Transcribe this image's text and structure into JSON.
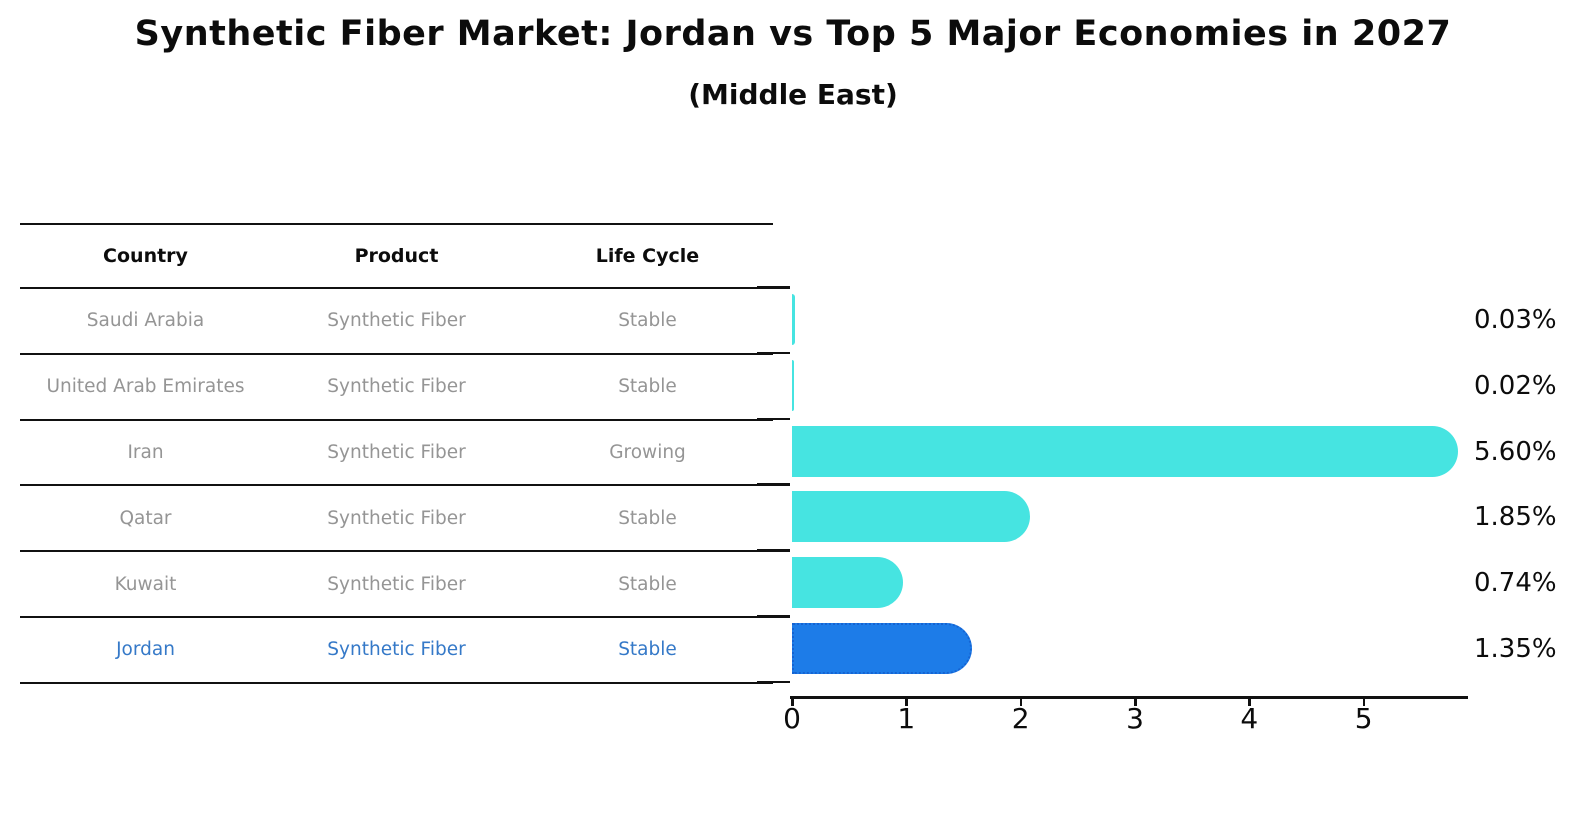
{
  "title": "Synthetic Fiber Market: Jordan vs Top 5 Major Economies in 2027",
  "subtitle": "(Middle East)",
  "table": {
    "headers": [
      "Country",
      "Product",
      "Life Cycle"
    ],
    "rows": [
      {
        "country": "Saudi Arabia",
        "product": "Synthetic Fiber",
        "life_cycle": "Stable",
        "highlighted": false
      },
      {
        "country": "United Arab Emirates",
        "product": "Synthetic Fiber",
        "life_cycle": "Stable",
        "highlighted": false
      },
      {
        "country": "Iran",
        "product": "Synthetic Fiber",
        "life_cycle": "Growing",
        "highlighted": false
      },
      {
        "country": "Qatar",
        "product": "Synthetic Fiber",
        "life_cycle": "Stable",
        "highlighted": false
      },
      {
        "country": "Kuwait",
        "product": "Synthetic Fiber",
        "life_cycle": "Stable",
        "highlighted": false
      },
      {
        "country": "Jordan",
        "product": "Synthetic Fiber",
        "life_cycle": "Stable",
        "highlighted": true
      }
    ]
  },
  "chart_data": {
    "type": "bar",
    "orientation": "horizontal",
    "title": "Synthetic Fiber Market: Jordan vs Top 5 Major Economies in 2027",
    "subtitle": "(Middle East)",
    "categories": [
      "Saudi Arabia",
      "United Arab Emirates",
      "Iran",
      "Qatar",
      "Kuwait",
      "Jordan"
    ],
    "values": [
      0.03,
      0.02,
      5.6,
      1.85,
      0.74,
      1.35
    ],
    "value_labels": [
      "0.03%",
      "0.02%",
      "5.60%",
      "1.85%",
      "0.74%",
      "1.35%"
    ],
    "x_ticks": [
      "0",
      "1",
      "2",
      "3",
      "4",
      "5"
    ],
    "xlim": [
      0,
      5.93
    ],
    "grid": false,
    "legend": "none",
    "highlight_category": "Jordan",
    "colors": {
      "bar": "#46e4e1",
      "highlight_bar": "#1d7ce8",
      "highlight_border": "#1563d2",
      "highlight_text": "#3579c8",
      "table_text": "#959595",
      "text": "#0c0c0c",
      "axis": "#111111"
    }
  }
}
